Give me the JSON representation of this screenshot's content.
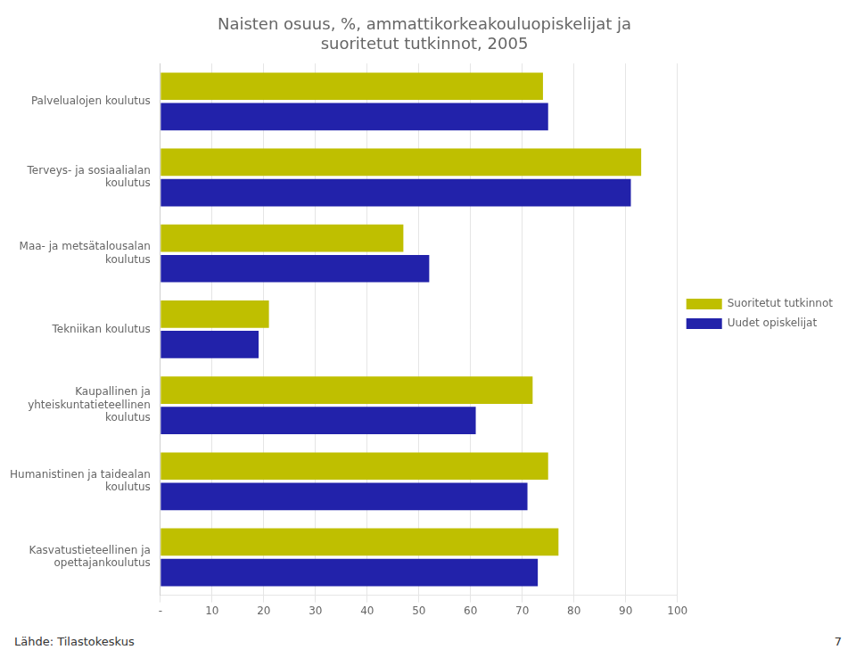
{
  "chart_data": {
    "type": "bar",
    "orientation": "horizontal",
    "title": "Naisten osuus, %, ammattikorkeakouluopiskelijat ja\nsuoritetut tutkinnot, 2005",
    "categories": [
      "Palvelualojen koulutus",
      "Terveys- ja sosiaalialan\nkoulutus",
      "Maa- ja metsätalousalan\nkoulutus",
      "Tekniikan koulutus",
      "Kaupallinen ja\nyhteiskuntatieteellinen\nkoulutus",
      "Humanistinen ja taidealan\nkoulutus",
      "Kasvatustieteellinen ja\nopettajankoulutus"
    ],
    "series": [
      {
        "name": "Suoritetut tutkinnot",
        "color": "#BFBF00",
        "values": [
          74,
          93,
          47,
          21,
          72,
          75,
          77
        ]
      },
      {
        "name": "Uudet opiskelijat",
        "color": "#2222AA",
        "values": [
          75,
          91,
          52,
          19,
          61,
          71,
          73
        ]
      }
    ],
    "xlim": [
      0,
      100
    ],
    "xticks": [
      {
        "value": 0,
        "label": "-"
      },
      10,
      20,
      30,
      40,
      50,
      60,
      70,
      80,
      90,
      100
    ],
    "grid": true,
    "legend": "right",
    "annotations": [
      "Lähde: Tilastokeskus",
      "7"
    ]
  }
}
